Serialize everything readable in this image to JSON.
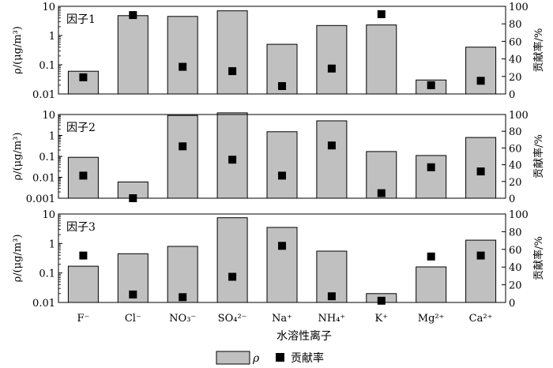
{
  "chart_data": {
    "type": "bar",
    "categories": [
      "F⁻",
      "Cl⁻",
      "NO₃⁻",
      "SO₄²⁻",
      "Na⁺",
      "NH₄⁺",
      "K⁺",
      "Mg²⁺",
      "Ca²⁺"
    ],
    "xlabel": "水溶性离子",
    "ylabel_left": "ρ/(μg/m³)",
    "ylabel_right": "贡献率/%",
    "legend": {
      "bar": "ρ",
      "marker": "贡献率",
      "position": "bottom-center"
    },
    "grid": false,
    "panels": [
      {
        "label": "因子1",
        "ylim_log": [
          0.01,
          10
        ],
        "yticks": [
          "0.01",
          "0.1",
          "1",
          "10"
        ],
        "y2lim": [
          0,
          100
        ],
        "y2ticks": [
          "0",
          "20",
          "40",
          "60",
          "80",
          "100"
        ],
        "rho": [
          0.06,
          4.8,
          4.5,
          7.0,
          0.5,
          2.2,
          2.3,
          0.03,
          0.4
        ],
        "contribution": [
          19,
          90,
          31,
          26,
          9,
          29,
          91,
          10,
          15
        ]
      },
      {
        "label": "因子2",
        "ylim_log": [
          0.001,
          10
        ],
        "yticks": [
          "0.001",
          "0.01",
          "0.1",
          "1",
          "10"
        ],
        "y2lim": [
          0,
          100
        ],
        "y2ticks": [
          "0",
          "20",
          "40",
          "60",
          "80",
          "100"
        ],
        "rho": [
          0.09,
          0.006,
          9.0,
          12.0,
          1.5,
          5.0,
          0.17,
          0.11,
          0.8
        ],
        "contribution": [
          27,
          0,
          62,
          46,
          27,
          63,
          6,
          37,
          32
        ]
      },
      {
        "label": "因子3",
        "ylim_log": [
          0.01,
          10
        ],
        "yticks": [
          "0.01",
          "0.1",
          "1",
          "10"
        ],
        "y2lim": [
          0,
          100
        ],
        "y2ticks": [
          "0",
          "20",
          "40",
          "60",
          "80",
          "100"
        ],
        "rho": [
          0.17,
          0.45,
          0.8,
          7.5,
          3.5,
          0.55,
          0.02,
          0.16,
          1.3
        ],
        "contribution": [
          53,
          9,
          6,
          29,
          64,
          7,
          2,
          52,
          53
        ]
      }
    ],
    "colors": {
      "bar_fill": "#c0c0c0",
      "bar_stroke": "#000000",
      "marker": "#000000"
    }
  }
}
